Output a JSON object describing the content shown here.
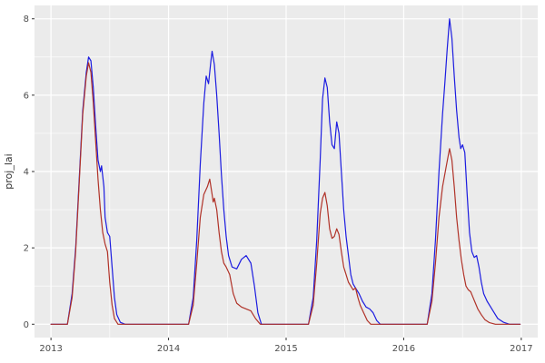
{
  "figure": {
    "background": "#ffffff",
    "panel_background": "#EBEBEB"
  },
  "chart_data": {
    "type": "line",
    "title": "",
    "xlabel": "",
    "ylabel": "proj_lai",
    "legend_position": "none",
    "grid": "on",
    "x_domain": [
      2012.86,
      2017.14
    ],
    "y_domain": [
      -0.35,
      8.35
    ],
    "x_ticks": [
      2013,
      2014,
      2015,
      2016,
      2017
    ],
    "x_tick_labels": [
      "2013",
      "2014",
      "2015",
      "2016",
      "2017"
    ],
    "y_ticks": [
      0,
      2,
      4,
      6,
      8
    ],
    "y_tick_labels": [
      "0",
      "2",
      "4",
      "6",
      "8"
    ],
    "x_minor": [
      2013.5,
      2014.5,
      2015.5,
      2016.5
    ],
    "y_minor": [
      1,
      3,
      5,
      7
    ],
    "panel_bg": "#EBEBEB",
    "grid_color": "#FFFFFF",
    "axis_text_color": "#4D4D4D",
    "series": [
      {
        "name": "blue",
        "color": "#1C1CE0",
        "points": [
          [
            2013.0,
            0
          ],
          [
            2013.14,
            0
          ],
          [
            2013.18,
            0.8
          ],
          [
            2013.21,
            2.0
          ],
          [
            2013.24,
            3.8
          ],
          [
            2013.27,
            5.6
          ],
          [
            2013.3,
            6.6
          ],
          [
            2013.32,
            7.0
          ],
          [
            2013.34,
            6.9
          ],
          [
            2013.36,
            6.2
          ],
          [
            2013.38,
            5.2
          ],
          [
            2013.4,
            4.3
          ],
          [
            2013.42,
            4.0
          ],
          [
            2013.43,
            4.15
          ],
          [
            2013.45,
            3.6
          ],
          [
            2013.46,
            2.8
          ],
          [
            2013.48,
            2.4
          ],
          [
            2013.5,
            2.3
          ],
          [
            2013.52,
            1.5
          ],
          [
            2013.54,
            0.7
          ],
          [
            2013.56,
            0.25
          ],
          [
            2013.59,
            0.05
          ],
          [
            2013.63,
            0
          ],
          [
            2014.17,
            0
          ],
          [
            2014.21,
            0.7
          ],
          [
            2014.24,
            2.2
          ],
          [
            2014.27,
            4.2
          ],
          [
            2014.3,
            5.8
          ],
          [
            2014.32,
            6.5
          ],
          [
            2014.34,
            6.3
          ],
          [
            2014.36,
            6.9
          ],
          [
            2014.37,
            7.15
          ],
          [
            2014.39,
            6.8
          ],
          [
            2014.41,
            6.0
          ],
          [
            2014.43,
            5.0
          ],
          [
            2014.45,
            3.9
          ],
          [
            2014.47,
            3.0
          ],
          [
            2014.49,
            2.3
          ],
          [
            2014.51,
            1.8
          ],
          [
            2014.54,
            1.5
          ],
          [
            2014.58,
            1.45
          ],
          [
            2014.62,
            1.7
          ],
          [
            2014.66,
            1.8
          ],
          [
            2014.7,
            1.6
          ],
          [
            2014.73,
            1.0
          ],
          [
            2014.76,
            0.3
          ],
          [
            2014.79,
            0
          ],
          [
            2015.19,
            0
          ],
          [
            2015.23,
            0.7
          ],
          [
            2015.26,
            2.2
          ],
          [
            2015.29,
            4.3
          ],
          [
            2015.31,
            5.9
          ],
          [
            2015.33,
            6.45
          ],
          [
            2015.35,
            6.2
          ],
          [
            2015.37,
            5.3
          ],
          [
            2015.39,
            4.7
          ],
          [
            2015.41,
            4.6
          ],
          [
            2015.43,
            5.3
          ],
          [
            2015.45,
            5.0
          ],
          [
            2015.47,
            4.0
          ],
          [
            2015.49,
            3.0
          ],
          [
            2015.51,
            2.3
          ],
          [
            2015.53,
            1.8
          ],
          [
            2015.55,
            1.3
          ],
          [
            2015.57,
            1.05
          ],
          [
            2015.59,
            0.95
          ],
          [
            2015.62,
            0.8
          ],
          [
            2015.65,
            0.6
          ],
          [
            2015.68,
            0.45
          ],
          [
            2015.71,
            0.4
          ],
          [
            2015.74,
            0.3
          ],
          [
            2015.77,
            0.1
          ],
          [
            2015.8,
            0
          ],
          [
            2016.2,
            0
          ],
          [
            2016.24,
            0.8
          ],
          [
            2016.27,
            2.2
          ],
          [
            2016.3,
            4.0
          ],
          [
            2016.33,
            5.5
          ],
          [
            2016.35,
            6.3
          ],
          [
            2016.37,
            7.2
          ],
          [
            2016.39,
            8.0
          ],
          [
            2016.41,
            7.5
          ],
          [
            2016.43,
            6.5
          ],
          [
            2016.45,
            5.6
          ],
          [
            2016.47,
            4.9
          ],
          [
            2016.485,
            4.6
          ],
          [
            2016.5,
            4.7
          ],
          [
            2016.52,
            4.5
          ],
          [
            2016.54,
            3.4
          ],
          [
            2016.56,
            2.4
          ],
          [
            2016.58,
            1.9
          ],
          [
            2016.6,
            1.75
          ],
          [
            2016.62,
            1.8
          ],
          [
            2016.64,
            1.5
          ],
          [
            2016.66,
            1.1
          ],
          [
            2016.68,
            0.8
          ],
          [
            2016.71,
            0.6
          ],
          [
            2016.74,
            0.45
          ],
          [
            2016.77,
            0.3
          ],
          [
            2016.8,
            0.15
          ],
          [
            2016.85,
            0.05
          ],
          [
            2016.9,
            0
          ],
          [
            2016.99,
            0
          ]
        ]
      },
      {
        "name": "red",
        "color": "#B03228",
        "points": [
          [
            2013.0,
            0
          ],
          [
            2013.14,
            0
          ],
          [
            2013.18,
            0.7
          ],
          [
            2013.21,
            1.9
          ],
          [
            2013.24,
            3.7
          ],
          [
            2013.27,
            5.5
          ],
          [
            2013.3,
            6.5
          ],
          [
            2013.32,
            6.85
          ],
          [
            2013.34,
            6.6
          ],
          [
            2013.36,
            5.8
          ],
          [
            2013.38,
            4.8
          ],
          [
            2013.4,
            3.8
          ],
          [
            2013.42,
            3.0
          ],
          [
            2013.44,
            2.4
          ],
          [
            2013.46,
            2.1
          ],
          [
            2013.48,
            1.9
          ],
          [
            2013.5,
            1.1
          ],
          [
            2013.52,
            0.5
          ],
          [
            2013.54,
            0.15
          ],
          [
            2013.57,
            0
          ],
          [
            2014.17,
            0
          ],
          [
            2014.21,
            0.5
          ],
          [
            2014.24,
            1.6
          ],
          [
            2014.27,
            2.8
          ],
          [
            2014.3,
            3.4
          ],
          [
            2014.33,
            3.6
          ],
          [
            2014.35,
            3.8
          ],
          [
            2014.37,
            3.4
          ],
          [
            2014.38,
            3.2
          ],
          [
            2014.39,
            3.3
          ],
          [
            2014.41,
            3.0
          ],
          [
            2014.43,
            2.4
          ],
          [
            2014.45,
            1.9
          ],
          [
            2014.47,
            1.6
          ],
          [
            2014.49,
            1.5
          ],
          [
            2014.52,
            1.3
          ],
          [
            2014.55,
            0.8
          ],
          [
            2014.58,
            0.55
          ],
          [
            2014.62,
            0.45
          ],
          [
            2014.66,
            0.4
          ],
          [
            2014.7,
            0.35
          ],
          [
            2014.74,
            0.15
          ],
          [
            2014.78,
            0
          ],
          [
            2015.19,
            0
          ],
          [
            2015.23,
            0.5
          ],
          [
            2015.26,
            1.6
          ],
          [
            2015.29,
            2.9
          ],
          [
            2015.31,
            3.3
          ],
          [
            2015.33,
            3.45
          ],
          [
            2015.35,
            3.1
          ],
          [
            2015.37,
            2.5
          ],
          [
            2015.39,
            2.25
          ],
          [
            2015.41,
            2.3
          ],
          [
            2015.43,
            2.5
          ],
          [
            2015.45,
            2.35
          ],
          [
            2015.47,
            1.9
          ],
          [
            2015.49,
            1.5
          ],
          [
            2015.51,
            1.3
          ],
          [
            2015.53,
            1.1
          ],
          [
            2015.55,
            1.0
          ],
          [
            2015.57,
            0.9
          ],
          [
            2015.59,
            0.95
          ],
          [
            2015.61,
            0.7
          ],
          [
            2015.63,
            0.5
          ],
          [
            2015.66,
            0.3
          ],
          [
            2015.69,
            0.1
          ],
          [
            2015.72,
            0
          ],
          [
            2016.2,
            0
          ],
          [
            2016.24,
            0.6
          ],
          [
            2016.27,
            1.6
          ],
          [
            2016.3,
            2.8
          ],
          [
            2016.33,
            3.6
          ],
          [
            2016.36,
            4.1
          ],
          [
            2016.39,
            4.6
          ],
          [
            2016.41,
            4.3
          ],
          [
            2016.43,
            3.6
          ],
          [
            2016.45,
            2.8
          ],
          [
            2016.47,
            2.2
          ],
          [
            2016.49,
            1.7
          ],
          [
            2016.51,
            1.3
          ],
          [
            2016.53,
            1.0
          ],
          [
            2016.55,
            0.9
          ],
          [
            2016.57,
            0.85
          ],
          [
            2016.59,
            0.7
          ],
          [
            2016.61,
            0.55
          ],
          [
            2016.63,
            0.4
          ],
          [
            2016.66,
            0.25
          ],
          [
            2016.69,
            0.12
          ],
          [
            2016.73,
            0.04
          ],
          [
            2016.78,
            0
          ],
          [
            2016.99,
            0
          ]
        ]
      }
    ]
  }
}
